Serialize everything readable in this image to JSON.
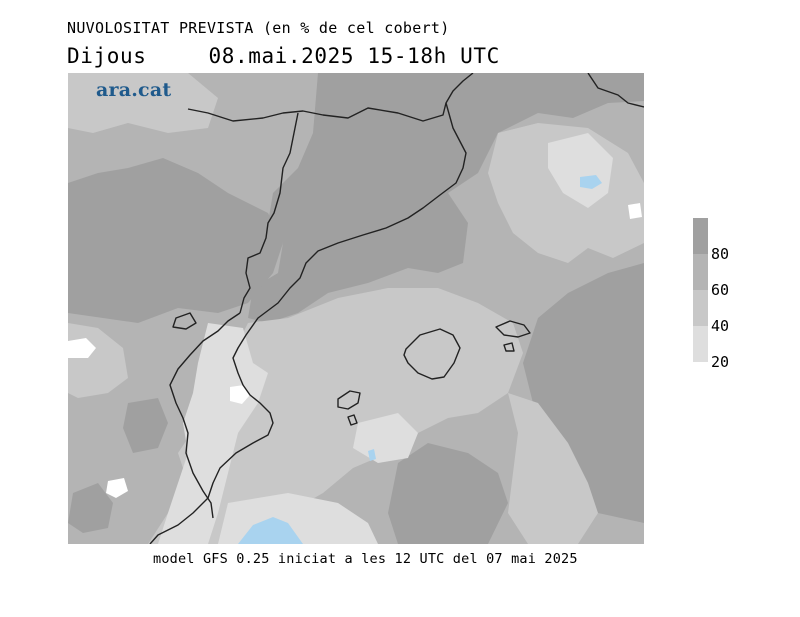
{
  "header": {
    "title": "NUVOLOSITAT PREVISTA (en % de cel cobert)",
    "day": "Dijous",
    "datetime": "08.mai.2025 15-18h UTC"
  },
  "map": {
    "logo_text": "ara.cat",
    "colors": {
      "sea_border": "#222222",
      "level_20_40": "#dedede",
      "level_40_60": "#c8c8c8",
      "level_60_80": "#b4b4b4",
      "level_80_100": "#a0a0a0",
      "clear": "#ffffff",
      "water_blue": "#a9d3ef"
    }
  },
  "legend": {
    "levels": [
      "80",
      "60",
      "40",
      "20"
    ],
    "colors": [
      "#a0a0a0",
      "#b4b4b4",
      "#c8c8c8",
      "#dedede"
    ]
  },
  "footer": {
    "caption": "model GFS 0.25 iniciat a les 12 UTC del 07 mai 2025"
  }
}
